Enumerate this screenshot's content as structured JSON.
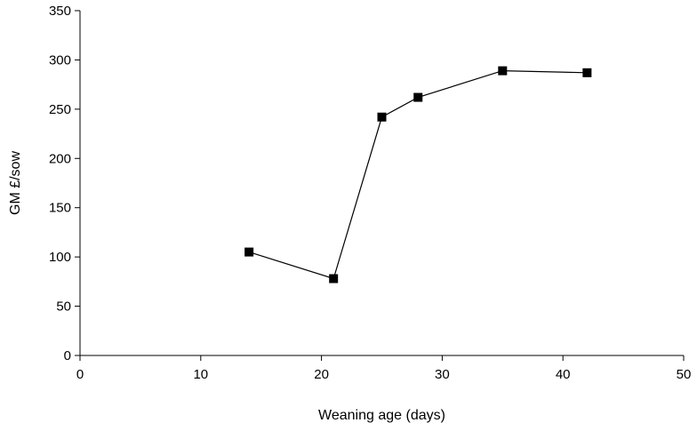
{
  "chart_data": {
    "type": "line",
    "title": "",
    "xlabel": "Weaning age (days)",
    "ylabel": "GM £/sow",
    "xlim": [
      0,
      50
    ],
    "ylim": [
      0,
      350
    ],
    "xticks": [
      0,
      10,
      20,
      30,
      40,
      50
    ],
    "yticks": [
      0,
      50,
      100,
      150,
      200,
      250,
      300,
      350
    ],
    "grid": false,
    "legend": "none",
    "series": [
      {
        "x": [
          14,
          21,
          25,
          28,
          35,
          42
        ],
        "y": [
          105,
          78,
          242,
          262,
          289,
          287
        ],
        "marker": "square",
        "color": "#000000"
      }
    ]
  }
}
